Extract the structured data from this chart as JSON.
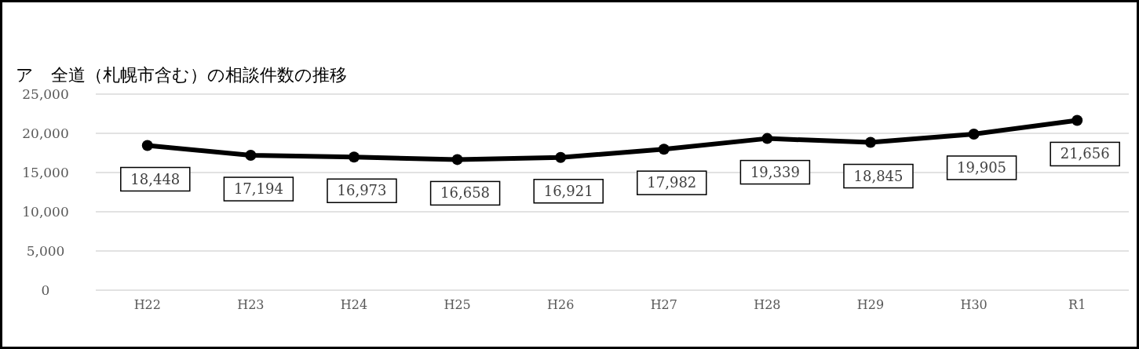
{
  "chart_data": {
    "type": "line",
    "title": "ア　全道（札幌市含む）の相談件数の推移",
    "categories": [
      "H22",
      "H23",
      "H24",
      "H25",
      "H26",
      "H27",
      "H28",
      "H29",
      "H30",
      "R1"
    ],
    "series": [
      {
        "color": "#000000",
        "values": [
          18448,
          17194,
          16973,
          16658,
          16921,
          17982,
          19339,
          18845,
          19905,
          21656
        ],
        "value_labels": [
          "18,448",
          "17,194",
          "16,973",
          "16,658",
          "16,921",
          "17,982",
          "19,339",
          "18,845",
          "19,905",
          "21,656"
        ]
      }
    ],
    "ylim": [
      0,
      25000
    ],
    "yticks": [
      {
        "value": 0,
        "label": "0"
      },
      {
        "value": 5000,
        "label": "5,000"
      },
      {
        "value": 10000,
        "label": "10,000"
      },
      {
        "value": 15000,
        "label": "15,000"
      },
      {
        "value": 20000,
        "label": "20,000"
      },
      {
        "value": 25000,
        "label": "25,000"
      }
    ],
    "grid": "y",
    "marker": "circle",
    "line_style": "solid"
  }
}
